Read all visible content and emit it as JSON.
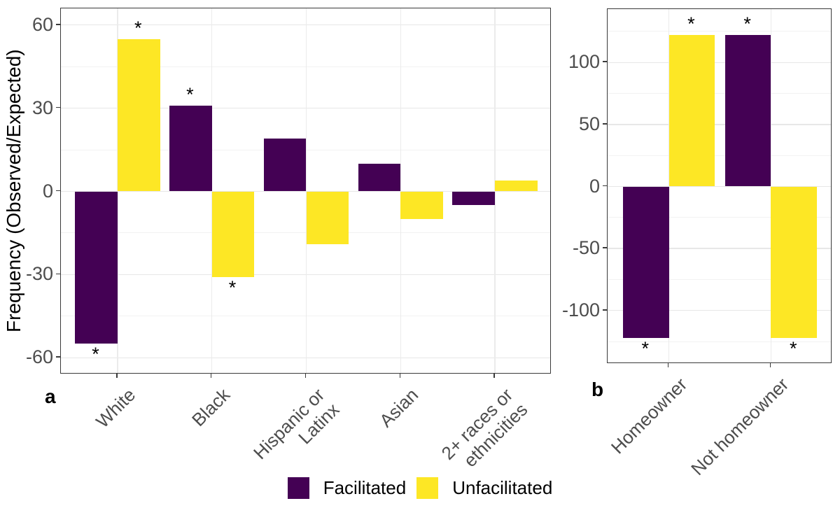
{
  "chart_data": {
    "type": "bar",
    "ylabel": "Frequency (Observed/Expected)",
    "significance_marker": "*",
    "grid": "major-and-minor",
    "legend_position": "bottom",
    "panels": [
      {
        "label": "a",
        "categories": [
          "White",
          "Black",
          "Hispanic or\nLatinx",
          "Asian",
          "2+ races or\nethnicities"
        ],
        "series": [
          {
            "name": "Facilitated",
            "color": "#440154",
            "values": [
              -55,
              31,
              19,
              10,
              -5
            ],
            "significant": [
              true,
              true,
              false,
              false,
              false
            ]
          },
          {
            "name": "Unfacilitated",
            "color": "#FDE725",
            "values": [
              55,
              -31,
              -19,
              -10,
              4
            ],
            "significant": [
              true,
              true,
              false,
              false,
              false
            ]
          }
        ],
        "ylim": [
          -66,
          66
        ],
        "yticks": [
          -60,
          -30,
          0,
          30,
          60
        ],
        "yticks_minor": [
          -45,
          -15,
          15,
          45
        ]
      },
      {
        "label": "b",
        "categories": [
          "Homeowner",
          "Not homeowner"
        ],
        "series": [
          {
            "name": "Facilitated",
            "color": "#440154",
            "values": [
              -122,
              122
            ],
            "significant": [
              true,
              true
            ]
          },
          {
            "name": "Unfacilitated",
            "color": "#FDE725",
            "values": [
              122,
              -122
            ],
            "significant": [
              true,
              true
            ]
          }
        ],
        "ylim": [
          -143,
          143
        ],
        "yticks": [
          -100,
          -50,
          0,
          50,
          100
        ],
        "yticks_minor": [
          -125,
          -75,
          -25,
          25,
          75,
          125
        ]
      }
    ],
    "legend": [
      {
        "label": "Facilitated",
        "color": "#440154"
      },
      {
        "label": "Unfacilitated",
        "color": "#FDE725"
      }
    ],
    "colors": {
      "facilitated": "#440154",
      "unfacilitated": "#FDE725",
      "panel_border": "#3a3a3a",
      "grid_major": "#e7e7e7",
      "axis_text": "#4d4d4d"
    }
  }
}
